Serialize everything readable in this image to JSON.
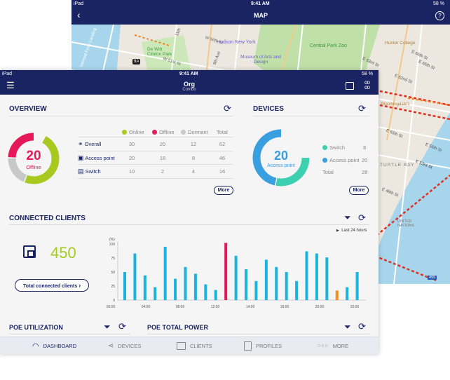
{
  "map_window": {
    "status": {
      "device": "iPad",
      "time": "9:41 AM",
      "battery": "58 %"
    },
    "title": "MAP",
    "labels": [
      "Hudson New York",
      "De Witt Clinton Park",
      "Museum of Arts and Design",
      "Central Park Zoo",
      "Hunter College",
      "W 56th St",
      "W 51st St",
      "9th Ave",
      "11th",
      "E 66th St",
      "E 65th St",
      "E 63rd St",
      "E 62nd St",
      "Bloomingdale's",
      "E 55th St",
      "E 56th St",
      "E 53rd St",
      "E 48th St",
      "TURTLE BAY",
      "UNITED NATIONS",
      "495",
      "9A",
      "Intrepid Ferry Landing"
    ]
  },
  "status": {
    "device": "iPad",
    "time": "9:41 AM",
    "battery": "58 %"
  },
  "header": {
    "title": "Org",
    "subtitle": "Combo"
  },
  "overview": {
    "title": "OVERVIEW",
    "donut": {
      "value": "20",
      "label": "Offline"
    },
    "columns": [
      "Online",
      "Offline",
      "Dormant",
      "Total"
    ],
    "colors": {
      "online": "#a8c920",
      "offline": "#e5185a",
      "dormant": "#c8c8c8"
    },
    "rows": [
      {
        "name": "Overall",
        "icon": "network-icon",
        "values": [
          "30",
          "20",
          "12",
          "62"
        ]
      },
      {
        "name": "Access point",
        "icon": "access-point-icon",
        "values": [
          "20",
          "18",
          "8",
          "46"
        ]
      },
      {
        "name": "Switch",
        "icon": "switch-icon",
        "values": [
          "10",
          "2",
          "4",
          "16"
        ]
      }
    ],
    "more": "More"
  },
  "devices": {
    "title": "DEVICES",
    "donut": {
      "value": "20",
      "label": "Access point"
    },
    "colors": {
      "switch": "#3ccfb0",
      "access_point": "#3a9fe0"
    },
    "items": [
      {
        "name": "Switch",
        "value": "8"
      },
      {
        "name": "Access point",
        "value": "20"
      },
      {
        "name": "Total",
        "value": "28"
      }
    ],
    "more": "More"
  },
  "clients": {
    "title": "CONNECTED CLIENTS",
    "count": "450",
    "button": "Total connected clients",
    "range": "Last 24 hours"
  },
  "chart_data": {
    "type": "bar",
    "ylabel": "(%)",
    "ylim": [
      0,
      100
    ],
    "yticks": [
      "0",
      "25",
      "50",
      "75",
      "100"
    ],
    "xticks": [
      "00:00",
      "04:00",
      "08:00",
      "12:00",
      "14:00",
      "16:00",
      "20:00",
      "20:00"
    ],
    "values": [
      50,
      83,
      44,
      23,
      95,
      38,
      59,
      47,
      28,
      18,
      102,
      79,
      55,
      34,
      72,
      59,
      50,
      34,
      87,
      83,
      76,
      17,
      23,
      50
    ],
    "highlight": {
      "10": "#e5185a",
      "21": "#f39020"
    },
    "color": "#1ab4dc"
  },
  "poe_util": {
    "title": "POE UTILIZATION"
  },
  "poe_power": {
    "title": "POE TOTAL POWER"
  },
  "tabs": [
    {
      "label": "DASHBOARD",
      "icon": "gauge-icon",
      "active": true
    },
    {
      "label": "DEVICES",
      "icon": "share-icon"
    },
    {
      "label": "CLIENTS",
      "icon": "clients-icon"
    },
    {
      "label": "PROFILES",
      "icon": "profiles-icon"
    },
    {
      "label": "MORE",
      "icon": "more-icon"
    }
  ]
}
